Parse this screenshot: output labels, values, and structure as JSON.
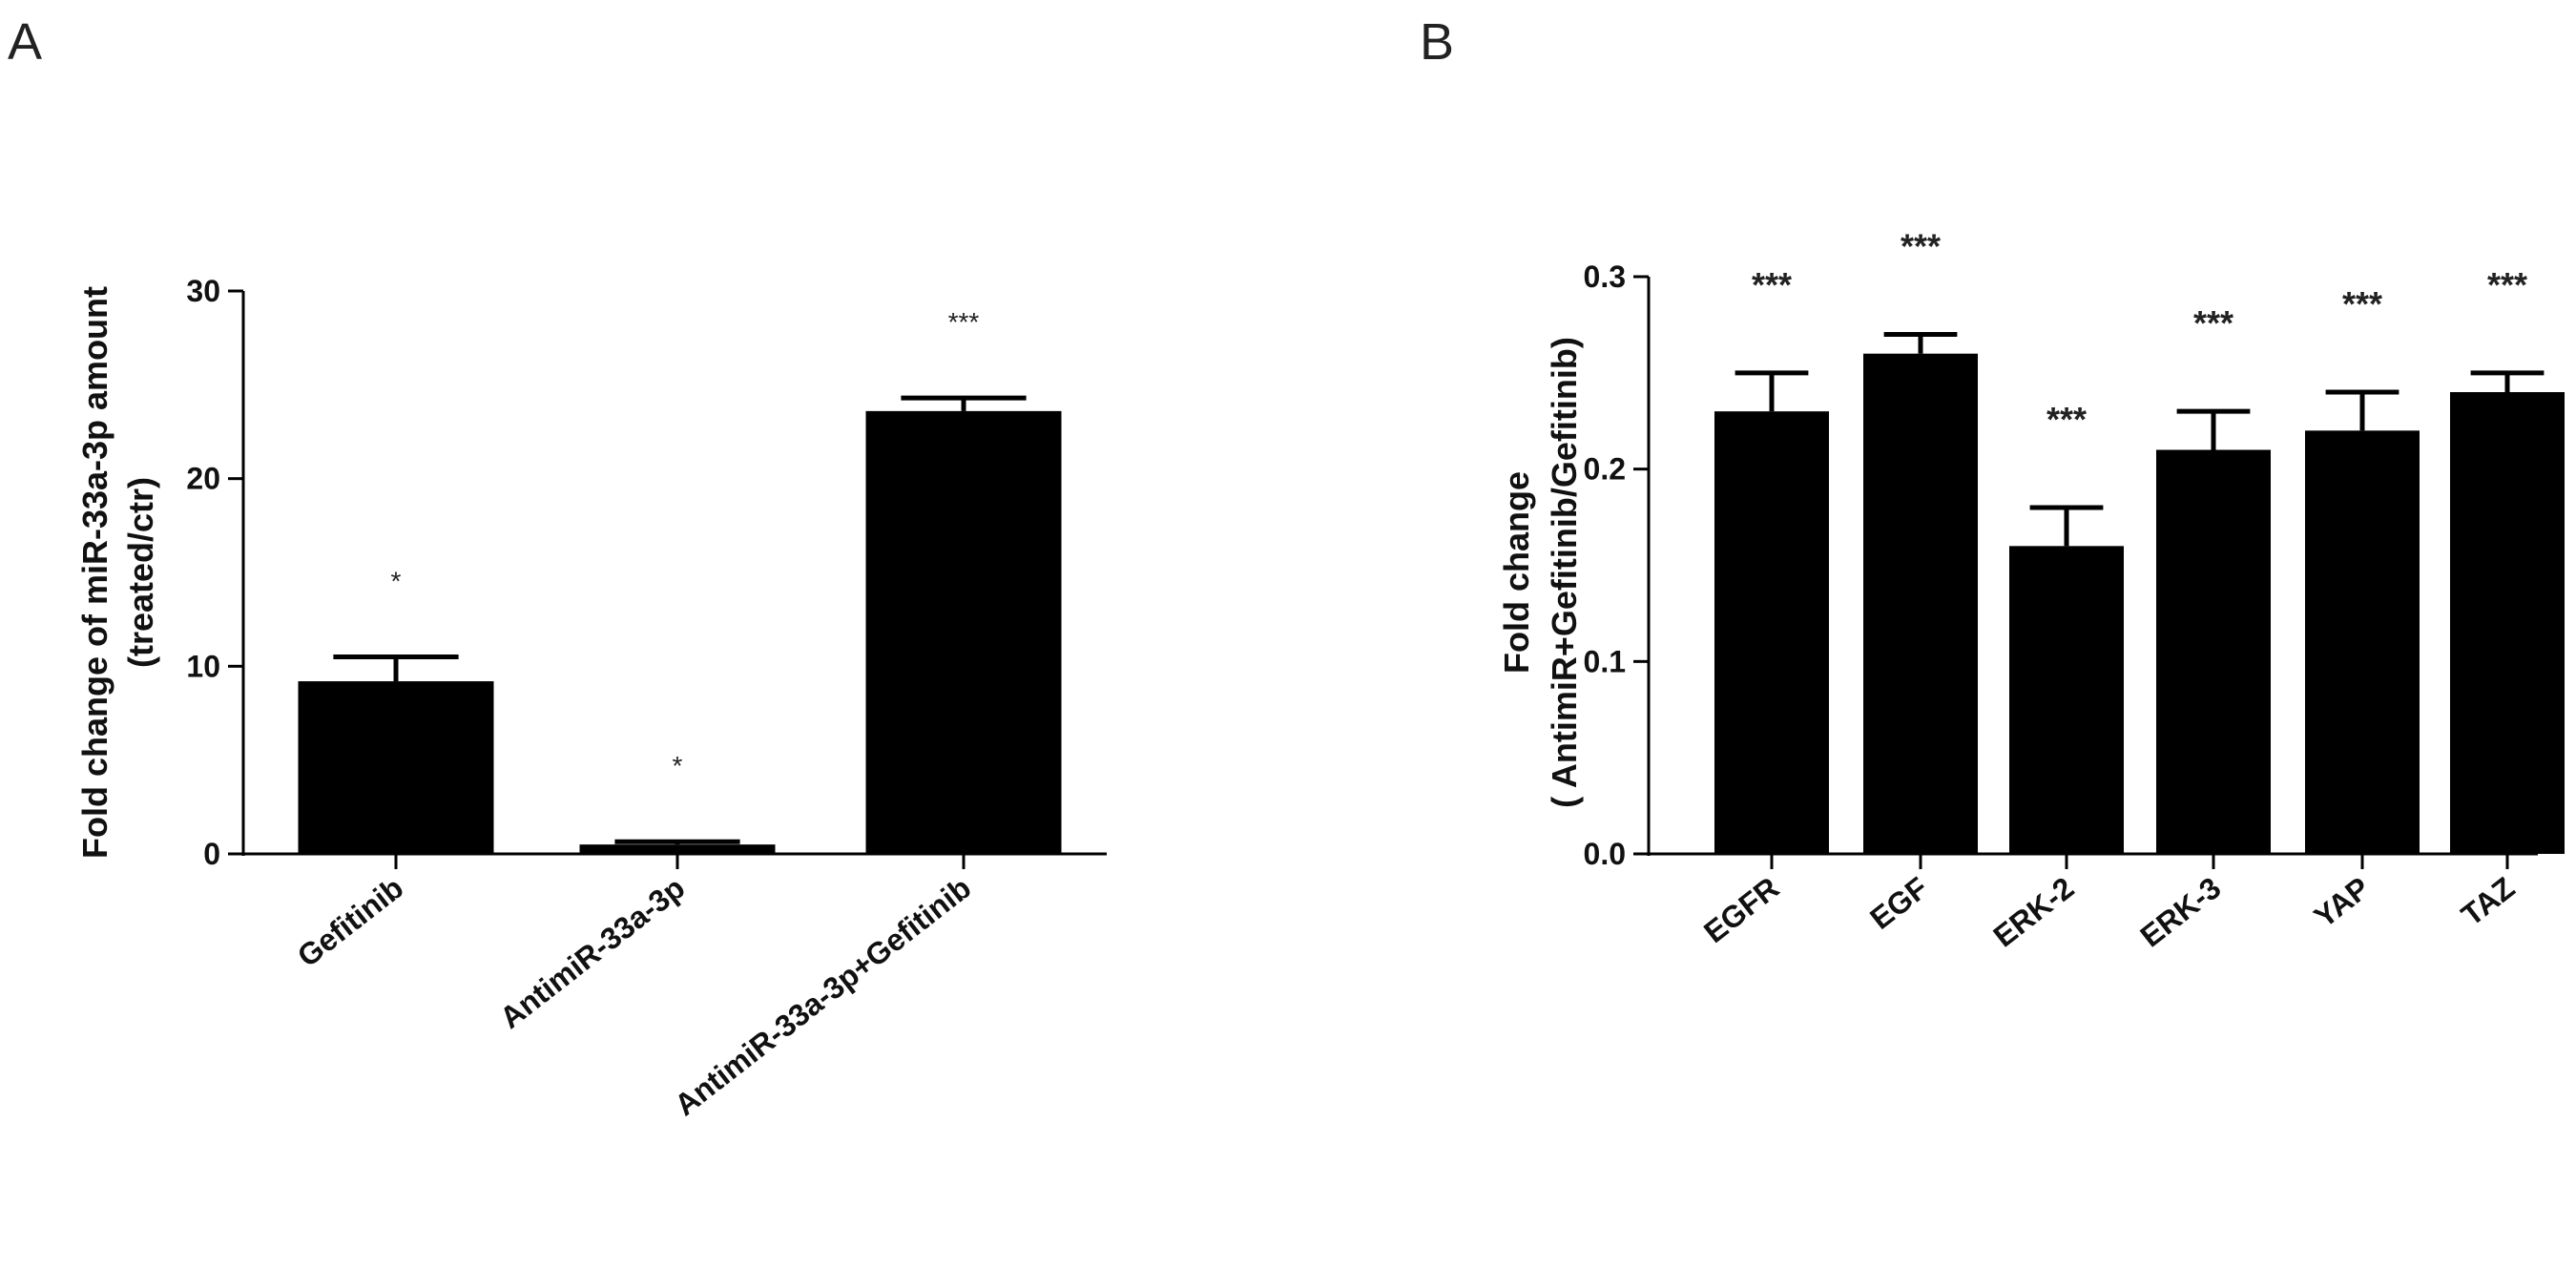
{
  "chart_data": [
    {
      "panel": "A",
      "type": "bar",
      "ylabel": "Fold change of miR-33a-3p amount",
      "ylabel2": "(treated/ctr)",
      "ylim": [
        0,
        30
      ],
      "yticks": [
        "0",
        "10",
        "20",
        "30"
      ],
      "categories": [
        "Gefitinib",
        "AntimiR-33a-3p",
        "AntimiR-33a-3p+Gefitinib"
      ],
      "values": [
        9.2,
        0.5,
        23.6
      ],
      "errors": [
        1.3,
        0.15,
        0.7
      ],
      "significance": [
        "*",
        "*",
        "***"
      ],
      "bar_color": "#000000"
    },
    {
      "panel": "B",
      "type": "bar",
      "ylabel": "Fold change",
      "ylabel2": "( AntimiR+Gefitinib/Gefitinib)",
      "ylim": [
        0,
        0.3
      ],
      "yticks": [
        "0.0",
        "0.1",
        "0.2",
        "0.3"
      ],
      "categories": [
        "EGFR",
        "EGF",
        "ERK-2",
        "ERK-3",
        "YAP",
        "TAZ"
      ],
      "values": [
        0.23,
        0.26,
        0.16,
        0.21,
        0.22,
        0.24
      ],
      "errors": [
        0.02,
        0.01,
        0.02,
        0.02,
        0.02,
        0.01
      ],
      "significance": [
        "***",
        "***",
        "***",
        "***",
        "***",
        "***"
      ],
      "bar_color": "#000000"
    }
  ]
}
